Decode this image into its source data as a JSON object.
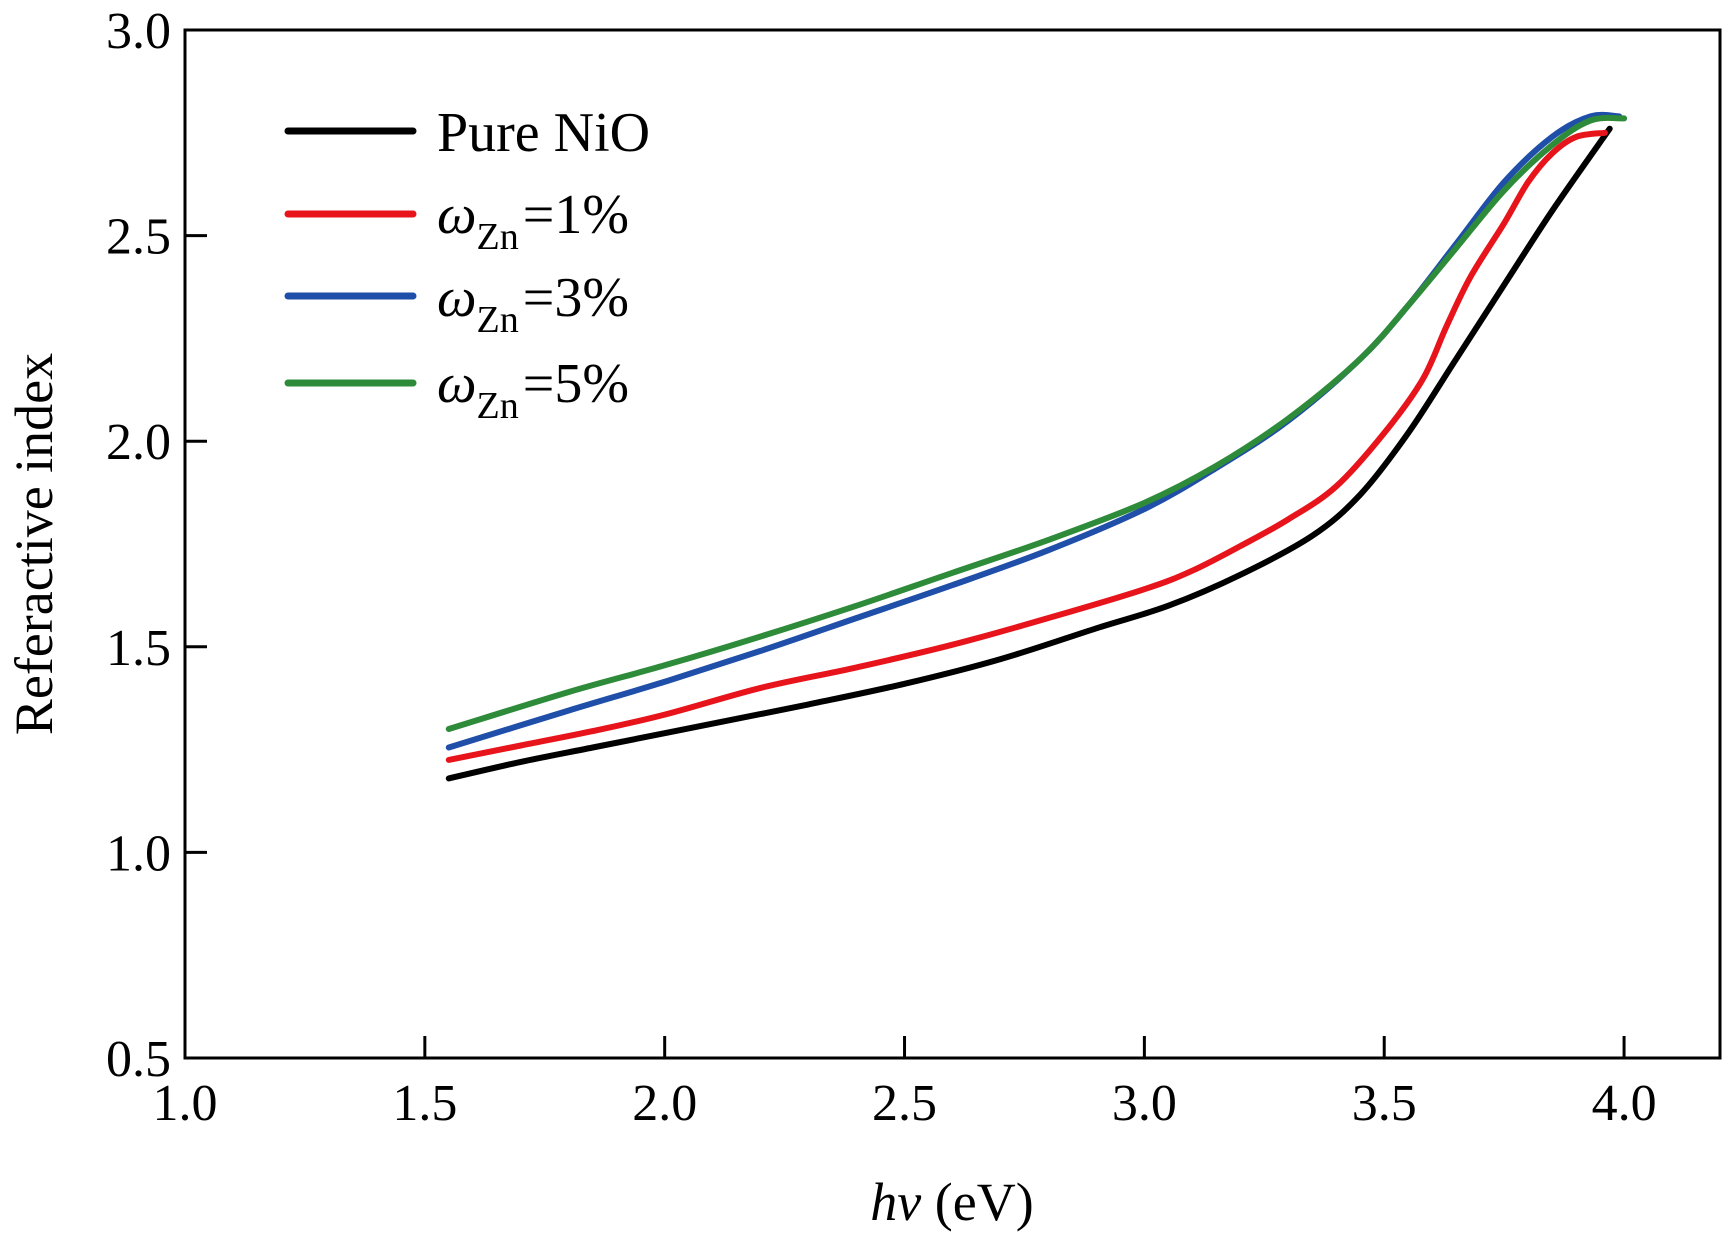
{
  "chart_data": {
    "type": "line",
    "xlabel_italic": "hν",
    "xlabel_unit": " (eV)",
    "ylabel": "Referactive index",
    "xlim": [
      1.0,
      4.2
    ],
    "ylim": [
      0.5,
      3.0
    ],
    "xticks": [
      "1.0",
      "1.5",
      "2.0",
      "2.5",
      "3.0",
      "3.5",
      "4.0"
    ],
    "yticks": [
      "0.5",
      "1.0",
      "1.5",
      "2.0",
      "2.5",
      "3.0"
    ],
    "legend_position": "top-left",
    "series": [
      {
        "name": "Pure NiO",
        "legend_label": "Pure NiO",
        "color": "#000000",
        "x": [
          1.55,
          1.7,
          1.85,
          2.0,
          2.15,
          2.3,
          2.5,
          2.7,
          2.9,
          3.05,
          3.2,
          3.35,
          3.45,
          3.55,
          3.65,
          3.75,
          3.85,
          3.97
        ],
        "y": [
          1.18,
          1.22,
          1.255,
          1.29,
          1.325,
          1.36,
          1.41,
          1.47,
          1.545,
          1.6,
          1.675,
          1.77,
          1.87,
          2.02,
          2.2,
          2.38,
          2.56,
          2.76
        ]
      },
      {
        "name": "ωZn=1%",
        "legend_symbol": "ω",
        "legend_sub": "Zn",
        "legend_value": "=1%",
        "color": "#e8141b",
        "x": [
          1.55,
          1.7,
          1.85,
          2.0,
          2.2,
          2.4,
          2.6,
          2.8,
          3.0,
          3.1,
          3.2,
          3.3,
          3.4,
          3.5,
          3.58,
          3.63,
          3.68,
          3.75,
          3.8,
          3.85,
          3.9,
          3.96
        ],
        "y": [
          1.225,
          1.26,
          1.295,
          1.335,
          1.4,
          1.45,
          1.505,
          1.57,
          1.64,
          1.685,
          1.745,
          1.81,
          1.89,
          2.02,
          2.15,
          2.28,
          2.4,
          2.53,
          2.63,
          2.7,
          2.74,
          2.75
        ]
      },
      {
        "name": "ωZn=3%",
        "legend_symbol": "ω",
        "legend_sub": "Zn",
        "legend_value": "=3%",
        "color": "#1f4fa8",
        "x": [
          1.55,
          1.8,
          2.0,
          2.2,
          2.4,
          2.6,
          2.8,
          3.0,
          3.15,
          3.3,
          3.45,
          3.55,
          3.65,
          3.75,
          3.85,
          3.93,
          3.99
        ],
        "y": [
          1.255,
          1.345,
          1.415,
          1.49,
          1.57,
          1.65,
          1.735,
          1.835,
          1.935,
          2.05,
          2.2,
          2.33,
          2.48,
          2.63,
          2.74,
          2.79,
          2.79
        ]
      },
      {
        "name": "ωZn=5%",
        "legend_symbol": "ω",
        "legend_sub": "Zn",
        "legend_value": "=5%",
        "color": "#2e8b3a",
        "x": [
          1.55,
          1.8,
          2.0,
          2.2,
          2.4,
          2.6,
          2.8,
          3.0,
          3.15,
          3.3,
          3.45,
          3.55,
          3.65,
          3.75,
          3.85,
          3.93,
          4.0
        ],
        "y": [
          1.3,
          1.39,
          1.455,
          1.525,
          1.6,
          1.68,
          1.76,
          1.85,
          1.94,
          2.055,
          2.2,
          2.33,
          2.47,
          2.61,
          2.72,
          2.78,
          2.785
        ]
      }
    ]
  }
}
